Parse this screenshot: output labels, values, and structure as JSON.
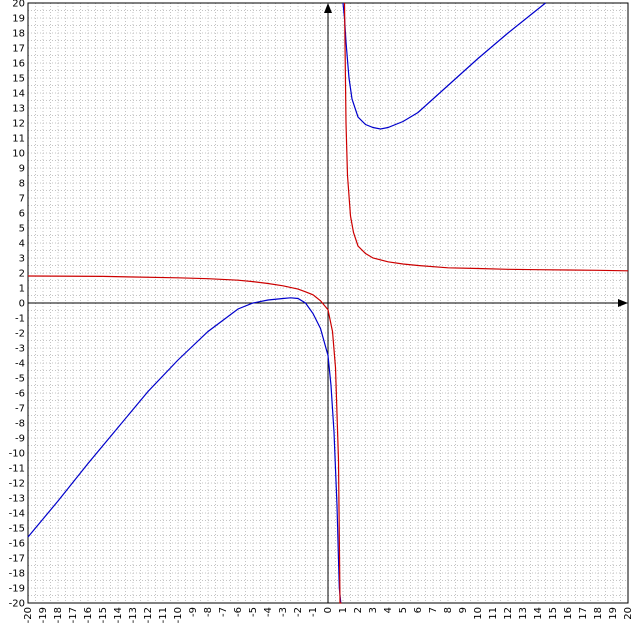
{
  "chart_data": {
    "type": "line",
    "title": "",
    "xlabel": "",
    "ylabel": "",
    "xlim": [
      -20,
      20
    ],
    "ylim": [
      -20,
      20
    ],
    "grid": true,
    "legend": "none",
    "x_ticks": [
      "-20",
      "-19",
      "-18",
      "-17",
      "-16",
      "-15",
      "-14",
      "-13",
      "-12",
      "-11",
      "-10",
      "-9",
      "-8",
      "-7",
      "-6",
      "-5",
      "-4",
      "-3",
      "-2",
      "-1",
      "0",
      "1",
      "2",
      "3",
      "4",
      "5",
      "6",
      "7",
      "8",
      "9",
      "10",
      "11",
      "12",
      "13",
      "14",
      "15",
      "16",
      "17",
      "18",
      "19",
      "20"
    ],
    "y_ticks": [
      "20",
      "19",
      "18",
      "17",
      "16",
      "15",
      "14",
      "13",
      "12",
      "11",
      "10",
      "9",
      "8",
      "7",
      "6",
      "5",
      "4",
      "3",
      "2",
      "1",
      "0",
      "-1",
      "-2",
      "-3",
      "-4",
      "-5",
      "-6",
      "-7",
      "-8",
      "-9",
      "-10",
      "-11",
      "-12",
      "-13",
      "-14",
      "-15",
      "-16",
      "-17",
      "-18",
      "-19",
      "-20"
    ],
    "series": [
      {
        "color": "#0000cc",
        "x": [
          -20,
          -18,
          -16,
          -14,
          -12,
          -10,
          -8,
          -6,
          -5,
          -4,
          -3,
          -2.5,
          -2,
          -1.5,
          -1,
          -0.5,
          0,
          0.2,
          0.4,
          0.6,
          0.75,
          0.85,
          1.0,
          1.1,
          1.2,
          1.4,
          1.6,
          2,
          2.5,
          3,
          3.5,
          4,
          5,
          6,
          8,
          10,
          12,
          14,
          14.5
        ],
        "y": [
          -15.6,
          -13.2,
          -10.7,
          -8.3,
          -5.9,
          -3.8,
          -1.9,
          -0.4,
          0.0,
          0.2,
          0.3,
          0.35,
          0.3,
          0.0,
          -0.7,
          -1.7,
          -3.5,
          -5.5,
          -8.6,
          -13.5,
          -19.0,
          -20,
          20,
          19.0,
          17.4,
          15.0,
          13.6,
          12.4,
          11.9,
          11.7,
          11.6,
          11.7,
          12.1,
          12.7,
          14.5,
          16.3,
          18.0,
          19.6,
          20
        ]
      },
      {
        "color": "#cc0000",
        "x": [
          -20,
          -15,
          -10,
          -8,
          -6,
          -5,
          -4,
          -3,
          -2,
          -1.5,
          -1,
          -0.5,
          0,
          0.3,
          0.5,
          0.7,
          0.8,
          0.9,
          1.1,
          1.2,
          1.3,
          1.5,
          1.7,
          2,
          2.5,
          3,
          4,
          5,
          6,
          8,
          10,
          12,
          14,
          16,
          18,
          20
        ],
        "y": [
          1.8,
          1.77,
          1.68,
          1.62,
          1.52,
          1.43,
          1.3,
          1.15,
          0.93,
          0.75,
          0.55,
          0.15,
          -0.45,
          -1.9,
          -4.3,
          -10.5,
          -20,
          -20,
          20,
          12.0,
          8.5,
          5.8,
          4.7,
          3.8,
          3.3,
          3.0,
          2.75,
          2.6,
          2.5,
          2.35,
          2.3,
          2.25,
          2.22,
          2.2,
          2.18,
          2.15
        ]
      }
    ]
  }
}
